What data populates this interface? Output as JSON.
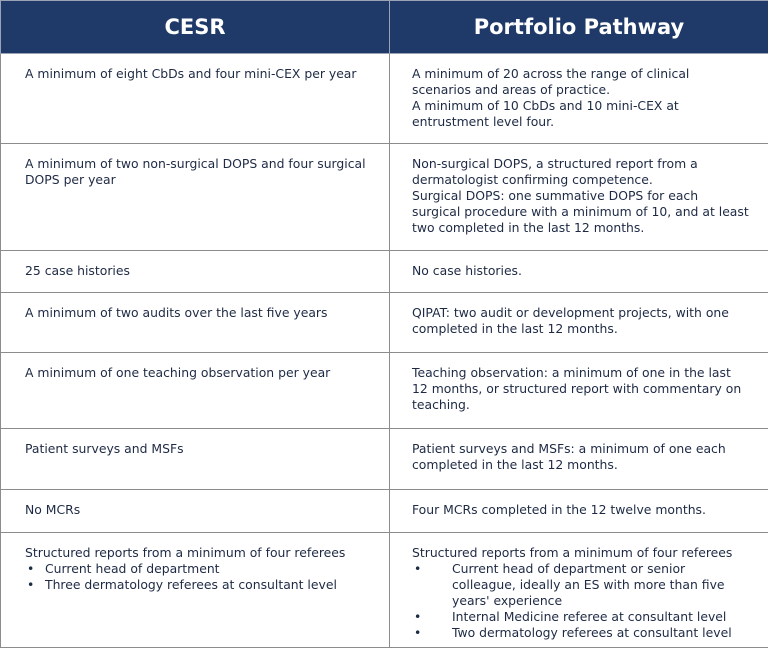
{
  "table": {
    "headers": [
      "CESR",
      "Portfolio Pathway"
    ],
    "rows": [
      [
        {
          "paragraphs": [
            "A minimum of eight CbDs and four mini-CEX per year"
          ]
        },
        {
          "paragraphs": [
            "A minimum of 20 across the range of clinical scenarios and areas of practice.",
            "A minimum of 10 CbDs and 10 mini-CEX at entrustment level four."
          ]
        }
      ],
      [
        {
          "paragraphs": [
            "A minimum of two non-surgical DOPS and four surgical DOPS per year"
          ]
        },
        {
          "paragraphs": [
            "Non-surgical DOPS, a structured report from a dermatologist confirming competence.",
            "Surgical DOPS: one summative DOPS for each surgical procedure with a minimum of 10, and at least two completed in the last 12 months."
          ]
        }
      ],
      [
        {
          "paragraphs": [
            "25 case histories"
          ]
        },
        {
          "paragraphs": [
            "No case histories."
          ]
        }
      ],
      [
        {
          "paragraphs": [
            "A minimum of two audits over the last five years"
          ]
        },
        {
          "paragraphs": [
            "QIPAT: two audit or development projects, with one completed in the last 12 months."
          ]
        }
      ],
      [
        {
          "paragraphs": [
            "A minimum of one teaching observation per year"
          ]
        },
        {
          "paragraphs": [
            "Teaching observation: a minimum of one in the last 12 months, or structured report with commentary on teaching."
          ]
        }
      ],
      [
        {
          "paragraphs": [
            "Patient surveys and MSFs"
          ]
        },
        {
          "paragraphs": [
            "Patient surveys and MSFs: a minimum of one each completed in the last 12 months."
          ]
        }
      ],
      [
        {
          "paragraphs": [
            "No MCRs"
          ]
        },
        {
          "paragraphs": [
            "Four MCRs completed in the 12 twelve months."
          ]
        }
      ],
      [
        {
          "paragraphs": [
            "Structured reports from a minimum of four referees"
          ],
          "bullets": [
            "Current head of department",
            "Three dermatology referees at consultant level"
          ]
        },
        {
          "paragraphs": [
            "Structured reports from a minimum of four referees"
          ],
          "bullets": [
            "Current head of department or senior colleague, ideally an ES with more than five years' experience",
            "Internal Medicine referee at consultant level",
            "Two dermatology referees at consultant level"
          ]
        }
      ]
    ]
  }
}
